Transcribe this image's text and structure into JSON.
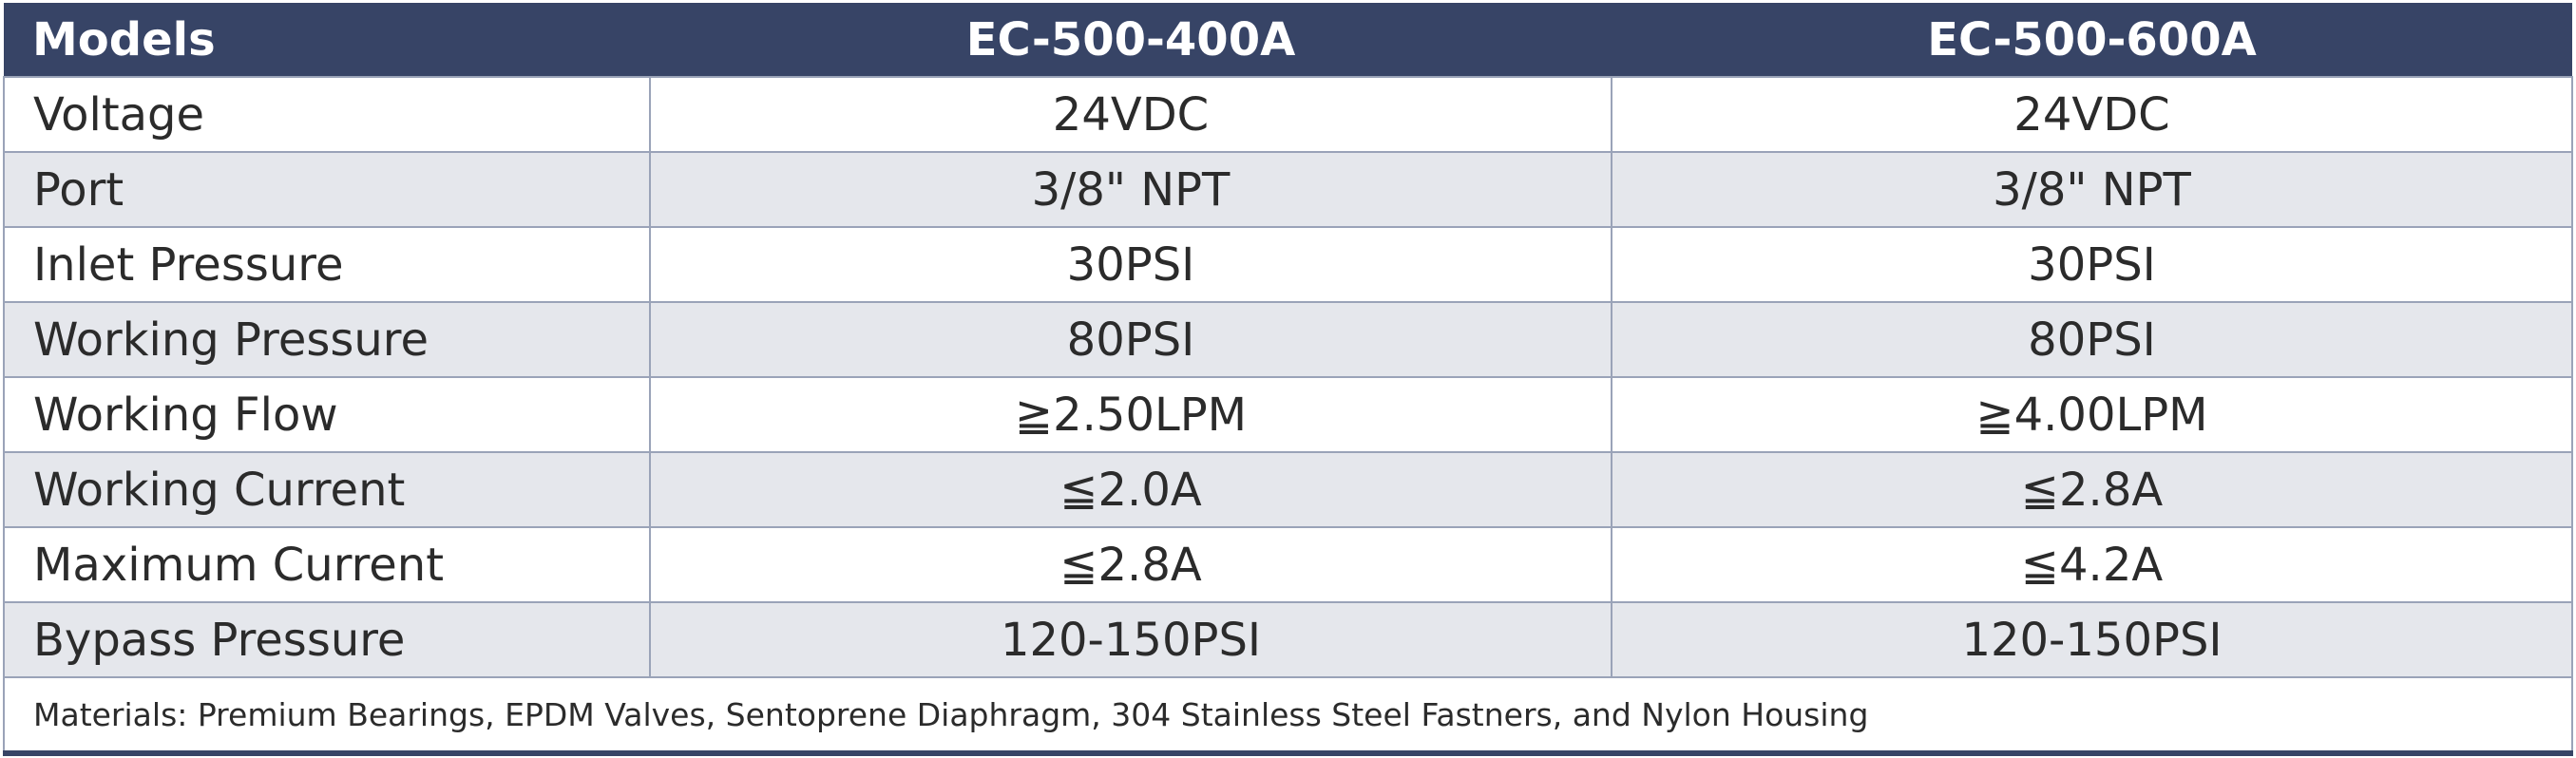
{
  "header": {
    "label": "Models",
    "models": [
      "EC-500-400A",
      "EC-500-600A"
    ]
  },
  "rows": [
    {
      "label": "Voltage",
      "values": [
        "24VDC",
        "24VDC"
      ]
    },
    {
      "label": "Port",
      "values": [
        "3/8\" NPT",
        "3/8\" NPT"
      ]
    },
    {
      "label": "Inlet Pressure",
      "values": [
        "30PSI",
        "30PSI"
      ]
    },
    {
      "label": "Working Pressure",
      "values": [
        "80PSI",
        "80PSI"
      ]
    },
    {
      "label": "Working Flow",
      "values": [
        "≧2.50LPM",
        "≧4.00LPM"
      ]
    },
    {
      "label": "Working Current",
      "values": [
        "≦2.0A",
        "≦2.8A"
      ]
    },
    {
      "label": "Maximum Current",
      "values": [
        "≦2.8A",
        "≦4.2A"
      ]
    },
    {
      "label": "Bypass Pressure",
      "values": [
        "120-150PSI",
        "120-150PSI"
      ]
    }
  ],
  "footer": {
    "materials_note": "Materials: Premium Bearings, EPDM Valves, Sentoprene Diaphragm, 304 Stainless Steel Fastners, and Nylon Housing"
  },
  "colors": {
    "header_bg": "#374466",
    "header_text": "#ffffff",
    "alt_row_bg": "#e5e7ec",
    "border": "#9aa3b8"
  }
}
